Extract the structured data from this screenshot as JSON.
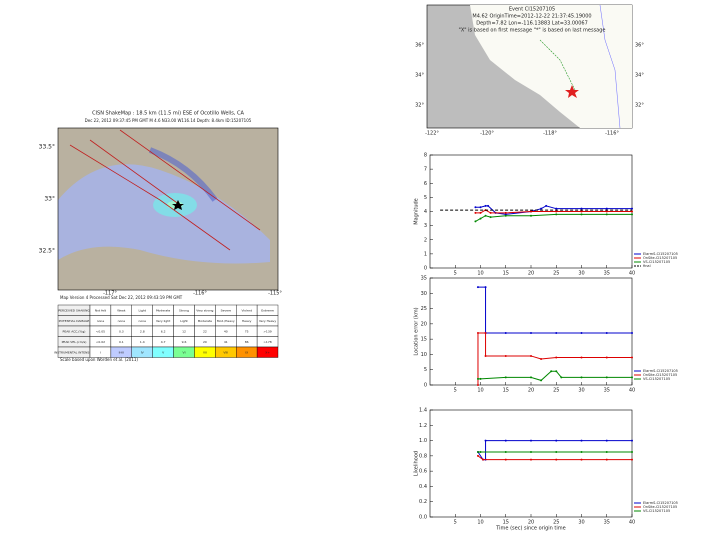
{
  "event_map": {
    "lines": [
      "Event CI15207105",
      "M4.62 OriginTime=2012-12-22 21:37:45.19000",
      "Depth=7.82 Lon=-116.13883 Lat=33.00067",
      "\"X\" is based on first message \"*\" is based on last message"
    ],
    "lon_labels": [
      "-122°",
      "-120°",
      "-118°",
      "-116°"
    ],
    "lat_labels": [
      "36°",
      "34°",
      "32°"
    ]
  },
  "shakemap": {
    "title": "CISN ShakeMap : 18.5 km (11.5 mi) ESE of Ocotillo Wells, CA",
    "subtitle": "Dec 22, 2012 09:37:45 PM GMT  M 4.6  N33.00 W116.14  Depth: 8.4km  ID:15207105",
    "lat_labels": [
      "33.5°",
      "33°",
      "32.5°"
    ],
    "lon_labels": [
      "-117°",
      "-116°",
      "-115°"
    ],
    "footer": "Map Version 4 Processed Sat Dec 22, 2012 09:43:19 PM GMT",
    "note": "Scale based upon Worden et al. (2011)",
    "table": {
      "rows": [
        [
          "PERCEIVED SHAKING",
          "Not felt",
          "Weak",
          "Light",
          "Moderate",
          "Strong",
          "Very strong",
          "Severe",
          "Violent",
          "Extreme"
        ],
        [
          "POTENTIAL DAMAGE",
          "none",
          "none",
          "none",
          "Very light",
          "Light",
          "Moderate",
          "Mod./Heavy",
          "Heavy",
          "Very Heavy"
        ],
        [
          "PEAK ACC.(%g)",
          "<0.05",
          "0.3",
          "2.8",
          "6.2",
          "12",
          "22",
          "40",
          "75",
          ">139"
        ],
        [
          "PEAK VEL.(cm/s)",
          "<0.02",
          "0.1",
          "1.4",
          "4.7",
          "9.6",
          "20",
          "41",
          "86",
          ">178"
        ],
        [
          "INSTRUMENTAL INTENSITY",
          "I",
          "II-III",
          "IV",
          "V",
          "VI",
          "VII",
          "VIII",
          "IX",
          "X+"
        ]
      ]
    }
  },
  "chart_data": [
    {
      "type": "line",
      "ylabel": "Magnitude",
      "xlim": [
        0,
        40
      ],
      "xticks": [
        5,
        10,
        15,
        20,
        25,
        30,
        35,
        40
      ],
      "ylim": [
        0,
        8
      ],
      "yticks": [
        0,
        1,
        2,
        3,
        4,
        5,
        6,
        7,
        8
      ],
      "series": [
        {
          "name": "ElarmS-CI15207105",
          "color": "#0000cc",
          "x": [
            9,
            10,
            11,
            11.5,
            13,
            15,
            20,
            22,
            23,
            25,
            30,
            35,
            40
          ],
          "values": [
            4.3,
            4.3,
            4.4,
            4.4,
            3.9,
            3.8,
            4.0,
            4.2,
            4.4,
            4.2,
            4.2,
            4.2,
            4.2
          ]
        },
        {
          "name": "OnSite-CI15207105",
          "color": "#dd0000",
          "x": [
            9,
            10,
            11,
            12,
            15,
            20,
            25,
            30,
            35,
            40
          ],
          "values": [
            3.9,
            3.9,
            4.1,
            3.9,
            3.9,
            4.0,
            4.0,
            4.0,
            4.0,
            4.0
          ]
        },
        {
          "name": "VS-CI15207105",
          "color": "#008800",
          "x": [
            9,
            10,
            11,
            12,
            15,
            20,
            25,
            30,
            35,
            40
          ],
          "values": [
            3.3,
            3.5,
            3.7,
            3.6,
            3.7,
            3.7,
            3.8,
            3.8,
            3.8,
            3.8
          ]
        },
        {
          "name": "final",
          "color": "#000000",
          "dashed": true,
          "x": [
            2,
            40
          ],
          "values": [
            4.1,
            4.1
          ]
        }
      ]
    },
    {
      "type": "line",
      "ylabel": "Location error (km)",
      "xlim": [
        0,
        40
      ],
      "xticks": [
        5,
        10,
        15,
        20,
        25,
        30,
        35,
        40
      ],
      "ylim": [
        0,
        35
      ],
      "yticks": [
        0,
        5,
        10,
        15,
        20,
        25,
        30,
        35
      ],
      "series": [
        {
          "name": "ElarmS-CI15207105",
          "color": "#0000cc",
          "x": [
            9.5,
            11,
            11,
            15,
            20,
            25,
            30,
            35,
            40
          ],
          "values": [
            32,
            32,
            17,
            17,
            17,
            17,
            17,
            17,
            17
          ]
        },
        {
          "name": "OnSite-CI15207105",
          "color": "#dd0000",
          "x": [
            9.5,
            9.5,
            11,
            11,
            15,
            20,
            22,
            25,
            30,
            35,
            40
          ],
          "values": [
            0,
            17,
            17,
            9.5,
            9.5,
            9.5,
            8.5,
            9,
            9,
            9,
            9
          ]
        },
        {
          "name": "VS-CI15207105",
          "color": "#008800",
          "x": [
            9.5,
            10,
            15,
            20,
            22,
            24,
            25,
            26,
            30,
            35,
            40
          ],
          "values": [
            2,
            2,
            2.5,
            2.5,
            1.5,
            4.5,
            4.5,
            2.5,
            2.5,
            2.5,
            2.5
          ]
        }
      ]
    },
    {
      "type": "line",
      "ylabel": "Likelihood",
      "xlabel": "Time (sec) since origin time",
      "xlim": [
        0,
        40
      ],
      "xticks": [
        5,
        10,
        15,
        20,
        25,
        30,
        35,
        40
      ],
      "ylim": [
        0,
        1.4
      ],
      "yticks": [
        {
          "value": 0,
          "label": "0.0"
        },
        0.2,
        0.4,
        0.6,
        0.8,
        {
          "value": 1,
          "label": "1.0"
        },
        1.2,
        1.4
      ],
      "series": [
        {
          "name": "ElarmS-CI15207105",
          "color": "#0000cc",
          "x": [
            9.5,
            10.5,
            11,
            11,
            15,
            20,
            25,
            30,
            35,
            40
          ],
          "values": [
            0.85,
            0.75,
            0.75,
            1.0,
            1.0,
            1.0,
            1.0,
            1.0,
            1.0,
            1.0
          ]
        },
        {
          "name": "OnSite-CI15207105",
          "color": "#dd0000",
          "x": [
            9.5,
            10.5,
            15,
            20,
            25,
            30,
            35,
            40
          ],
          "values": [
            0.8,
            0.75,
            0.75,
            0.75,
            0.75,
            0.75,
            0.75,
            0.75
          ]
        },
        {
          "name": "VS-CI15207105",
          "color": "#008800",
          "x": [
            9.5,
            10,
            15,
            20,
            25,
            30,
            35,
            40
          ],
          "values": [
            0.85,
            0.85,
            0.85,
            0.85,
            0.85,
            0.85,
            0.85,
            0.85
          ]
        }
      ]
    }
  ]
}
